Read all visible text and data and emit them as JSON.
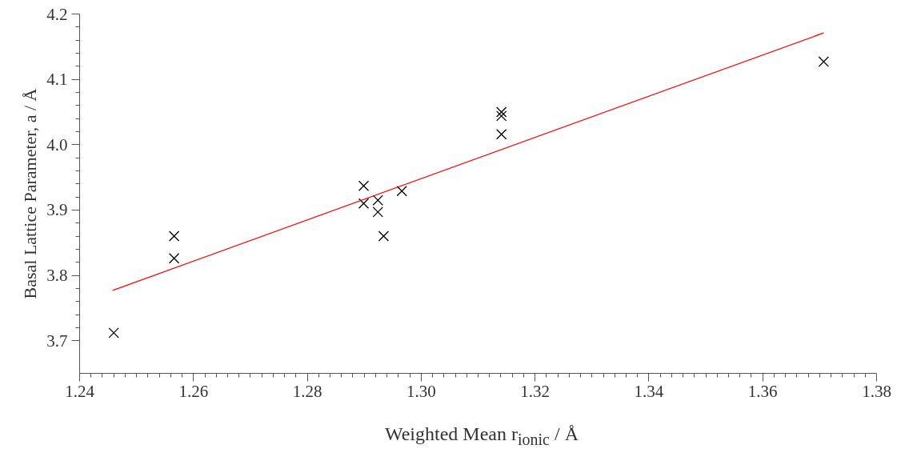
{
  "chart_data": {
    "type": "scatter",
    "xlabel": "Weighted Mean r$_{ionic}$ / Å",
    "ylabel": "Basal Lattice Parameter, a / Å",
    "xlim": [
      1.24,
      1.38
    ],
    "ylim": [
      3.65,
      4.2
    ],
    "xticks": [
      {
        "value": 1.24,
        "label": "1.24"
      },
      {
        "value": 1.26,
        "label": "1.26"
      },
      {
        "value": 1.28,
        "label": "1.28"
      },
      {
        "value": 1.3,
        "label": "1.30"
      },
      {
        "value": 1.32,
        "label": "1.32"
      },
      {
        "value": 1.34,
        "label": "1.34"
      },
      {
        "value": 1.36,
        "label": "1.36"
      },
      {
        "value": 1.38,
        "label": "1.38"
      }
    ],
    "yticks": [
      3.7,
      3.8,
      3.9,
      {
        "value": 4.0,
        "label": "4.0"
      },
      4.1,
      4.2
    ],
    "series": [
      {
        "marker": "cross",
        "color": "#000000",
        "x": [
          1.246,
          1.2566,
          1.2566,
          1.2899,
          1.2899,
          1.2924,
          1.2924,
          1.2934,
          1.2966,
          1.3141,
          1.3141,
          1.3141,
          1.3707
        ],
        "values": [
          3.712,
          3.86,
          3.826,
          3.937,
          3.91,
          3.915,
          3.897,
          3.86,
          3.929,
          4.05,
          4.044,
          4.016,
          4.127
        ]
      },
      {
        "type": "line",
        "color": "#ff0000",
        "line_style": "solid",
        "x": [
          1.2458,
          1.3707
        ],
        "values": [
          3.777,
          4.171
        ]
      }
    ]
  }
}
